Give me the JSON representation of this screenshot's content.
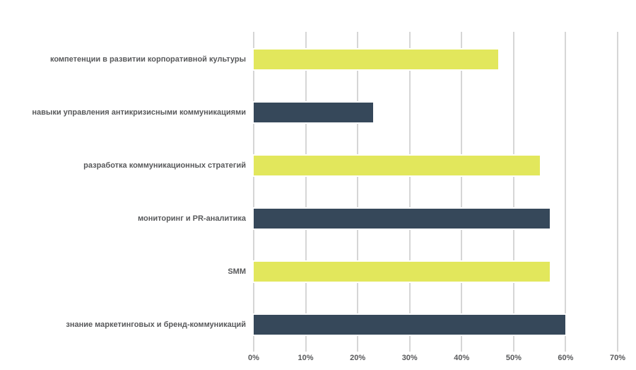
{
  "chart_data": {
    "type": "bar",
    "orientation": "horizontal",
    "title": "",
    "categories": [
      "компетенции в развитии корпоративной культуры",
      "навыки управления антикризисными коммуникациями",
      "разработка коммуникационных стратегий",
      "мониторинг и PR-аналитика",
      "SMM",
      "знание маркетинговых и бренд-коммуникаций"
    ],
    "values": [
      47,
      23,
      55,
      57,
      57,
      60
    ],
    "bar_colors": [
      "#e2e75c",
      "#36485a",
      "#e2e75c",
      "#36485a",
      "#e2e75c",
      "#36485a"
    ],
    "xlim": [
      0,
      70
    ],
    "x_tick_values": [
      0,
      10,
      20,
      30,
      40,
      50,
      60,
      70
    ],
    "x_tick_labels": [
      "0%",
      "10%",
      "20%",
      "30%",
      "40%",
      "50%",
      "60%",
      "70%"
    ],
    "grid": true,
    "legend": false
  },
  "colors": {
    "accent_yellow": "#e2e75c",
    "accent_dark": "#36485a",
    "gridline": "#d6d6d6",
    "label_text": "#58595b",
    "bar_border": "#ffffff",
    "background": "#ffffff"
  }
}
